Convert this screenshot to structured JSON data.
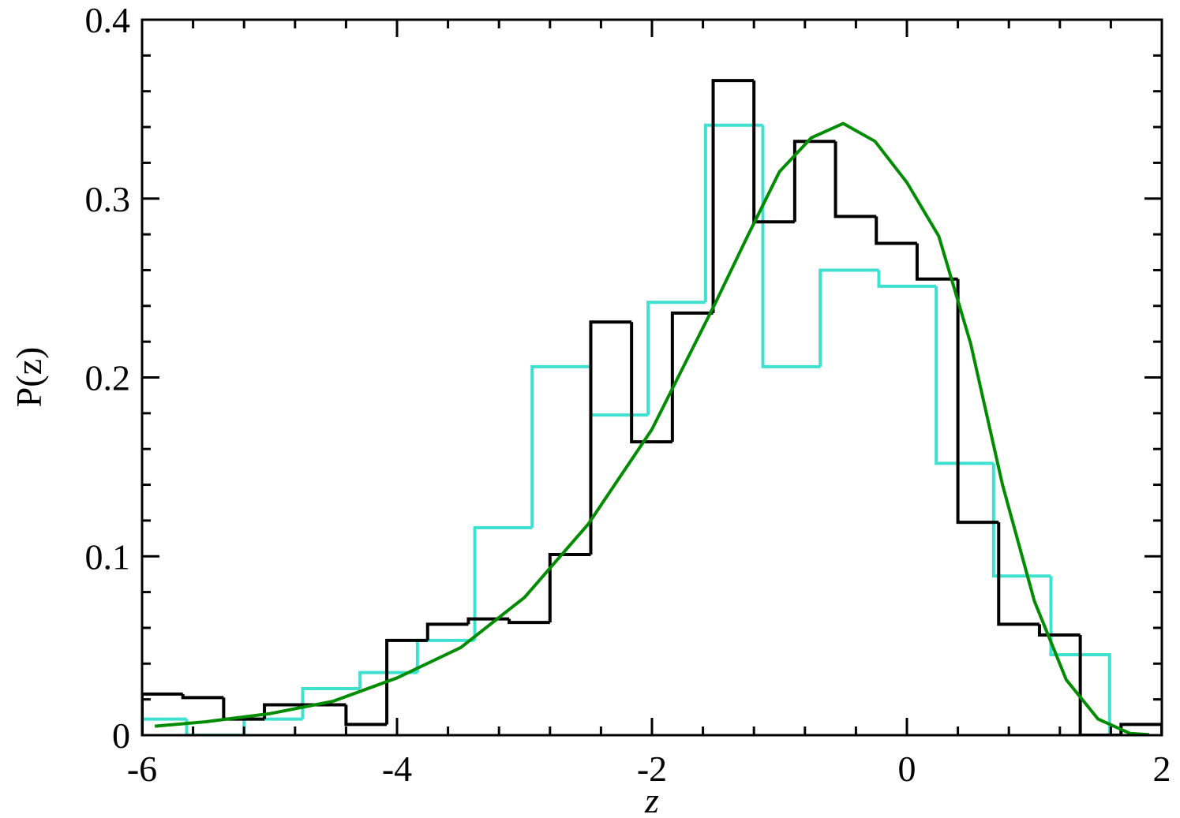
{
  "chart_data": {
    "type": "histogram",
    "xlabel": "z",
    "ylabel": "P(z)",
    "xlim": [
      -6,
      2
    ],
    "ylim": [
      0,
      0.4
    ],
    "xticks": [
      -6,
      -4,
      -2,
      0,
      2
    ],
    "yticks": [
      0,
      0.1,
      0.2,
      0.3,
      0.4
    ],
    "xminorticks": [
      -5.6,
      -5.2,
      -4.8,
      -4.4,
      -3.6,
      -3.2,
      -2.8,
      -2.4,
      -1.6,
      -1.2,
      -0.8,
      -0.4,
      0.4,
      0.8,
      1.2,
      1.6
    ],
    "yminorticks": [
      0.02,
      0.04,
      0.06,
      0.08,
      0.12,
      0.14,
      0.16,
      0.18,
      0.22,
      0.24,
      0.26,
      0.28,
      0.32,
      0.34,
      0.36,
      0.38
    ],
    "series": [
      {
        "kind": "step",
        "color": "#000000",
        "bins": [
          -6,
          -5.68,
          -5.36,
          -5.04,
          -4.72,
          -4.4,
          -4.08,
          -3.76,
          -3.44,
          -3.12,
          -2.8,
          -2.48,
          -2.16,
          -1.84,
          -1.52,
          -1.2,
          -0.88,
          -0.56,
          -0.24,
          0.08,
          0.4,
          0.72,
          1.04,
          1.36,
          1.68,
          2
        ],
        "values": [
          0.023,
          0.021,
          0.009,
          0.017,
          0.017,
          0.006,
          0.053,
          0.062,
          0.065,
          0.063,
          0.101,
          0.231,
          0.164,
          0.236,
          0.366,
          0.287,
          0.332,
          0.29,
          0.275,
          0.255,
          0.119,
          0.062,
          0.056,
          0,
          0.006
        ]
      },
      {
        "kind": "step",
        "color": "#40e0d0",
        "bins": [
          -6.1,
          -5.65,
          -5.2,
          -4.74,
          -4.29,
          -3.84,
          -3.39,
          -2.94,
          -2.48,
          -2.03,
          -1.58,
          -1.13,
          -0.68,
          -0.22,
          0.23,
          0.68,
          1.13,
          1.59
        ],
        "values": [
          0.009,
          0,
          0.009,
          0.026,
          0.035,
          0.053,
          0.116,
          0.206,
          0.179,
          0.242,
          0.341,
          0.206,
          0.26,
          0.251,
          0.152,
          0.089,
          0.045
        ]
      },
      {
        "kind": "line",
        "color": "#008c00",
        "x": [
          -5.9,
          -5.5,
          -5,
          -4.5,
          -4,
          -3.5,
          -3,
          -2.5,
          -2,
          -1.5,
          -1.25,
          -1,
          -0.75,
          -0.5,
          -0.25,
          0,
          0.25,
          0.5,
          0.75,
          1,
          1.25,
          1.5,
          1.75,
          1.9
        ],
        "values": [
          0.005,
          0.0075,
          0.012,
          0.019,
          0.032,
          0.049,
          0.077,
          0.118,
          0.171,
          0.242,
          0.279,
          0.315,
          0.334,
          0.342,
          0.332,
          0.309,
          0.279,
          0.219,
          0.14,
          0.075,
          0.031,
          0.009,
          0.001,
          0.0003
        ]
      }
    ]
  }
}
